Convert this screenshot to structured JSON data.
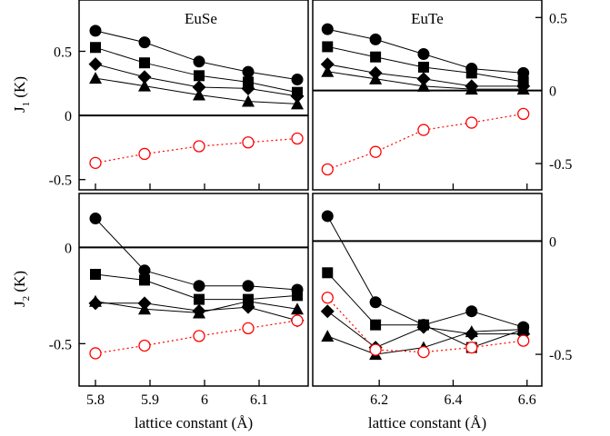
{
  "chart_data": [
    {
      "type": "line",
      "panel": "top-left",
      "title": "EuSe",
      "ylabel": "J1 (K)",
      "ylabel_main": "J",
      "ylabel_sub": "1",
      "ylabel_unit": " (K)",
      "xlabel": "",
      "xlim": [
        5.77,
        6.19
      ],
      "ylim": [
        -0.58,
        0.9
      ],
      "yticks": [
        0.5,
        0,
        -0.5
      ],
      "ytick_labels": [
        "0.5",
        "0",
        "-0.5"
      ],
      "ytick_side": "left",
      "xticks": [
        5.8,
        5.9,
        6.0,
        6.1
      ],
      "xtick_labels": [],
      "zero_line": true,
      "x": [
        5.8,
        5.89,
        5.99,
        6.08,
        6.17
      ],
      "series": [
        {
          "marker": "circle",
          "color": "#000000",
          "values": [
            0.66,
            0.57,
            0.42,
            0.34,
            0.28
          ]
        },
        {
          "marker": "square",
          "color": "#000000",
          "values": [
            0.53,
            0.41,
            0.31,
            0.26,
            0.18
          ]
        },
        {
          "marker": "diamond",
          "color": "#000000",
          "values": [
            0.4,
            0.3,
            0.22,
            0.21,
            0.15
          ]
        },
        {
          "marker": "triangle",
          "color": "#000000",
          "values": [
            0.29,
            0.23,
            0.16,
            0.11,
            0.09
          ]
        },
        {
          "marker": "open-circle",
          "color": "#ff0000",
          "dotted": true,
          "values": [
            -0.37,
            -0.3,
            -0.24,
            -0.21,
            -0.18
          ]
        }
      ]
    },
    {
      "type": "line",
      "panel": "top-right",
      "title": "EuTe",
      "ylabel": "",
      "xlabel": "",
      "xlim": [
        6.02,
        6.64
      ],
      "ylim": [
        -0.68,
        0.62
      ],
      "yticks": [
        0.5,
        0,
        -0.5
      ],
      "ytick_labels": [
        "0.5",
        "0",
        "-0.5"
      ],
      "ytick_side": "right",
      "xticks": [
        6.2,
        6.4,
        6.6
      ],
      "xtick_labels": [],
      "zero_line": true,
      "x": [
        6.06,
        6.19,
        6.32,
        6.45,
        6.59
      ],
      "series": [
        {
          "marker": "circle",
          "color": "#000000",
          "values": [
            0.42,
            0.35,
            0.25,
            0.15,
            0.12
          ]
        },
        {
          "marker": "square",
          "color": "#000000",
          "values": [
            0.3,
            0.23,
            0.16,
            0.12,
            0.06
          ]
        },
        {
          "marker": "diamond",
          "color": "#000000",
          "values": [
            0.18,
            0.12,
            0.08,
            0.03,
            0.03
          ]
        },
        {
          "marker": "triangle",
          "color": "#000000",
          "values": [
            0.13,
            0.08,
            0.03,
            0.01,
            0.01
          ]
        },
        {
          "marker": "open-circle",
          "color": "#ff0000",
          "dotted": true,
          "values": [
            -0.54,
            -0.42,
            -0.27,
            -0.22,
            -0.16
          ]
        }
      ]
    },
    {
      "type": "line",
      "panel": "bottom-left",
      "title": "",
      "ylabel": "J2 (K)",
      "ylabel_main": "J",
      "ylabel_sub": "2",
      "ylabel_unit": " (K)",
      "xlabel": "lattice constant (Å)",
      "xlim": [
        5.77,
        6.19
      ],
      "ylim": [
        -0.72,
        0.28
      ],
      "yticks": [
        0,
        -0.5
      ],
      "ytick_labels": [
        "0",
        "-0.5"
      ],
      "ytick_side": "left",
      "xticks": [
        5.8,
        5.9,
        6.0,
        6.1
      ],
      "xtick_labels": [
        "5.8",
        "5.9",
        "6",
        "6.1"
      ],
      "zero_line": true,
      "x": [
        5.8,
        5.89,
        5.99,
        6.08,
        6.17
      ],
      "series": [
        {
          "marker": "circle",
          "color": "#000000",
          "values": [
            0.15,
            -0.12,
            -0.2,
            -0.2,
            -0.22
          ]
        },
        {
          "marker": "square",
          "color": "#000000",
          "values": [
            -0.14,
            -0.17,
            -0.27,
            -0.27,
            -0.25
          ]
        },
        {
          "marker": "diamond",
          "color": "#000000",
          "values": [
            -0.29,
            -0.29,
            -0.33,
            -0.31,
            -0.38
          ]
        },
        {
          "marker": "triangle",
          "color": "#000000",
          "values": [
            -0.28,
            -0.32,
            -0.34,
            -0.28,
            -0.32
          ]
        },
        {
          "marker": "open-circle",
          "color": "#ff0000",
          "dotted": true,
          "values": [
            -0.55,
            -0.51,
            -0.46,
            -0.42,
            -0.38
          ]
        }
      ]
    },
    {
      "type": "line",
      "panel": "bottom-right",
      "title": "",
      "ylabel": "",
      "xlabel": "lattice constant (Å)",
      "xlim": [
        6.02,
        6.64
      ],
      "ylim": [
        -0.64,
        0.21
      ],
      "yticks": [
        0,
        -0.5
      ],
      "ytick_labels": [
        "0",
        "-0.5"
      ],
      "ytick_side": "right",
      "xticks": [
        6.2,
        6.4,
        6.6
      ],
      "xtick_labels": [
        "6.2",
        "6.4",
        "6.6"
      ],
      "zero_line": true,
      "x": [
        6.06,
        6.19,
        6.32,
        6.45,
        6.59
      ],
      "series": [
        {
          "marker": "circle",
          "color": "#000000",
          "values": [
            0.11,
            -0.27,
            -0.37,
            -0.31,
            -0.38
          ]
        },
        {
          "marker": "square",
          "color": "#000000",
          "values": [
            -0.14,
            -0.37,
            -0.37,
            -0.47,
            -0.39
          ]
        },
        {
          "marker": "diamond",
          "color": "#000000",
          "values": [
            -0.31,
            -0.47,
            -0.38,
            -0.41,
            -0.41
          ]
        },
        {
          "marker": "triangle",
          "color": "#000000",
          "values": [
            -0.42,
            -0.5,
            -0.47,
            -0.4,
            -0.39
          ]
        },
        {
          "marker": "open-circle",
          "color": "#ff0000",
          "dotted": true,
          "values": [
            -0.25,
            -0.48,
            -0.49,
            -0.47,
            -0.44
          ]
        }
      ]
    }
  ]
}
